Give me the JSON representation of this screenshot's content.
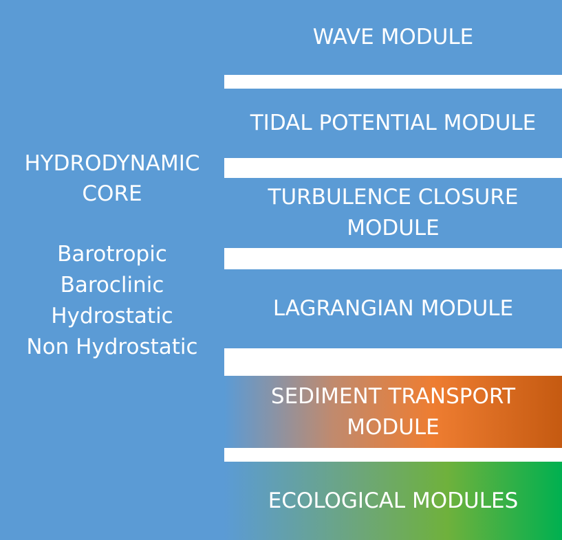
{
  "core": {
    "title": "HYDRODYNAMIC\nCORE",
    "modes": [
      "Barotropic",
      "Baroclinic",
      "Hydrostatic",
      "Non Hydrostatic"
    ]
  },
  "modules": [
    {
      "label": "WAVE MODULE"
    },
    {
      "label": "TIDAL POTENTIAL MODULE"
    },
    {
      "label": "TURBULENCE CLOSURE\nMODULE"
    },
    {
      "label": "LAGRANGIAN MODULE"
    },
    {
      "label": "SEDIMENT TRANSPORT\nMODULE"
    },
    {
      "label": "ECOLOGICAL MODULES"
    }
  ],
  "colors": {
    "block_blue": "#5b9bd5",
    "sediment_gradient": [
      "#5b9bd5",
      "#ee7d31",
      "#c55a11"
    ],
    "ecological_gradient": [
      "#5b9bd5",
      "#6fb13c",
      "#00b050"
    ],
    "text": "#ffffff",
    "background": "#ffffff"
  }
}
